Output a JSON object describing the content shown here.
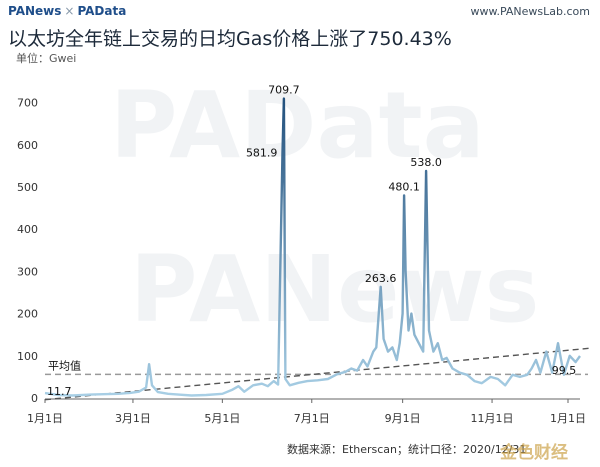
{
  "header": {
    "brand_left": "PANews",
    "brand_sep": "×",
    "brand_right": "PAData",
    "site": "www.PANewsLab.com"
  },
  "title": "以太坊全年链上交易的日均Gas价格上涨了750.43%",
  "unit": "单位：Gwei",
  "source": "数据来源：Etherscan；统计口径：2020/12/31",
  "watermark": {
    "primary": "PAData",
    "secondary": "PANews"
  },
  "corner_logo": "金色财经",
  "colors": {
    "low": "#a9d0e6",
    "high": "#1f4d7a",
    "trend": "#555555",
    "avg": "#999999"
  },
  "chart_data": {
    "type": "line",
    "title": "以太坊全年链上交易的日均Gas价格上涨了750.43%",
    "ylabel": "单位：Gwei",
    "ylim": [
      0,
      730
    ],
    "xlim": [
      "2020-01-01",
      "2020-12-31"
    ],
    "yticks": [
      0,
      100,
      200,
      300,
      400,
      500,
      600,
      700
    ],
    "xticks": [
      {
        "date": "2020-01-01",
        "label": "1月1日"
      },
      {
        "date": "2020-03-01",
        "label": "3月1日"
      },
      {
        "date": "2020-05-01",
        "label": "5月1日"
      },
      {
        "date": "2020-07-01",
        "label": "7月1日"
      },
      {
        "date": "2020-09-01",
        "label": "9月1日"
      },
      {
        "date": "2020-11-01",
        "label": "11月1日"
      },
      {
        "date": "2021-01-01",
        "label": "1月1日"
      }
    ],
    "grid": false,
    "average": {
      "label": "平均值",
      "value": 56
    },
    "trend": {
      "start": [
        "2020-01-01",
        -4
      ],
      "end": [
        "2020-12-31",
        118
      ]
    },
    "series": [
      {
        "points": [
          [
            "2020-01-01",
            11.7
          ],
          [
            "2020-01-10",
            7
          ],
          [
            "2020-01-20",
            6
          ],
          [
            "2020-02-01",
            8
          ],
          [
            "2020-02-10",
            9
          ],
          [
            "2020-02-20",
            10
          ],
          [
            "2020-02-28",
            12
          ],
          [
            "2020-03-05",
            15
          ],
          [
            "2020-03-10",
            25
          ],
          [
            "2020-03-12",
            80
          ],
          [
            "2020-03-14",
            30
          ],
          [
            "2020-03-18",
            14
          ],
          [
            "2020-03-25",
            10
          ],
          [
            "2020-04-01",
            8
          ],
          [
            "2020-04-10",
            6
          ],
          [
            "2020-04-20",
            7
          ],
          [
            "2020-05-01",
            10
          ],
          [
            "2020-05-08",
            20
          ],
          [
            "2020-05-12",
            28
          ],
          [
            "2020-05-16",
            15
          ],
          [
            "2020-05-22",
            30
          ],
          [
            "2020-05-28",
            34
          ],
          [
            "2020-06-01",
            28
          ],
          [
            "2020-06-05",
            40
          ],
          [
            "2020-06-08",
            32
          ],
          [
            "2020-06-11",
            581.9
          ],
          [
            "2020-06-12",
            709.7
          ],
          [
            "2020-06-13",
            45
          ],
          [
            "2020-06-16",
            30
          ],
          [
            "2020-06-22",
            36
          ],
          [
            "2020-06-28",
            40
          ],
          [
            "2020-07-05",
            42
          ],
          [
            "2020-07-12",
            45
          ],
          [
            "2020-07-18",
            56
          ],
          [
            "2020-07-24",
            62
          ],
          [
            "2020-07-28",
            70
          ],
          [
            "2020-08-01",
            65
          ],
          [
            "2020-08-05",
            90
          ],
          [
            "2020-08-08",
            75
          ],
          [
            "2020-08-12",
            110
          ],
          [
            "2020-08-14",
            120
          ],
          [
            "2020-08-17",
            263.6
          ],
          [
            "2020-08-19",
            140
          ],
          [
            "2020-08-22",
            110
          ],
          [
            "2020-08-25",
            120
          ],
          [
            "2020-08-28",
            90
          ],
          [
            "2020-08-30",
            130
          ],
          [
            "2020-09-01",
            200
          ],
          [
            "2020-09-02",
            480.1
          ],
          [
            "2020-09-03",
            300
          ],
          [
            "2020-09-05",
            160
          ],
          [
            "2020-09-07",
            200
          ],
          [
            "2020-09-09",
            150
          ],
          [
            "2020-09-12",
            130
          ],
          [
            "2020-09-15",
            110
          ],
          [
            "2020-09-17",
            538.0
          ],
          [
            "2020-09-19",
            160
          ],
          [
            "2020-09-22",
            110
          ],
          [
            "2020-09-25",
            130
          ],
          [
            "2020-09-28",
            90
          ],
          [
            "2020-10-01",
            95
          ],
          [
            "2020-10-05",
            70
          ],
          [
            "2020-10-10",
            60
          ],
          [
            "2020-10-15",
            55
          ],
          [
            "2020-10-20",
            40
          ],
          [
            "2020-10-25",
            35
          ],
          [
            "2020-10-31",
            50
          ],
          [
            "2020-11-05",
            45
          ],
          [
            "2020-11-10",
            30
          ],
          [
            "2020-11-15",
            55
          ],
          [
            "2020-11-20",
            50
          ],
          [
            "2020-11-25",
            55
          ],
          [
            "2020-11-28",
            70
          ],
          [
            "2020-12-01",
            90
          ],
          [
            "2020-12-04",
            60
          ],
          [
            "2020-12-08",
            110
          ],
          [
            "2020-12-12",
            60
          ],
          [
            "2020-12-16",
            130
          ],
          [
            "2020-12-20",
            55
          ],
          [
            "2020-12-24",
            100
          ],
          [
            "2020-12-28",
            85
          ],
          [
            "2020-12-31",
            99.5
          ]
        ]
      }
    ],
    "annotations": [
      {
        "text": "709.7",
        "date": "2020-06-12",
        "value": 709.7,
        "pos": "above"
      },
      {
        "text": "581.9",
        "date": "2020-06-11",
        "value": 581.9,
        "pos": "left"
      },
      {
        "text": "263.6",
        "date": "2020-08-17",
        "value": 263.6,
        "pos": "above"
      },
      {
        "text": "480.1",
        "date": "2020-09-02",
        "value": 480.1,
        "pos": "above"
      },
      {
        "text": "538.0",
        "date": "2020-09-17",
        "value": 538.0,
        "pos": "above"
      },
      {
        "text": "11.7",
        "date": "2020-01-01",
        "value": 11.7,
        "pos": "right"
      },
      {
        "text": "99.5",
        "date": "2020-12-31",
        "value": 99.5,
        "pos": "below"
      }
    ]
  }
}
